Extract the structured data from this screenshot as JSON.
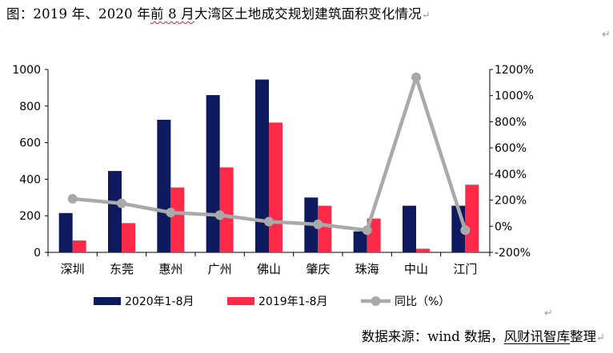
{
  "title": {
    "part1": "图：2019 年、2020 年",
    "part2": "前 8 月",
    "part3": "大湾区土地成交规划建筑面积变化情况",
    "return_mark": "↵"
  },
  "marks": {
    "side": "↵",
    "mid": "↵"
  },
  "source": {
    "prefix": "数据来源：wind 数据，",
    "underlined": "风财讯智库",
    "suffix": "整理",
    "return_mark": "↵"
  },
  "colors": {
    "s2020": "#0d1b5e",
    "s2019": "#ff2a48",
    "yoy": "#a9a9a9"
  },
  "chart_data": {
    "type": "bar",
    "categories": [
      "深圳",
      "东莞",
      "惠州",
      "广州",
      "佛山",
      "肇庆",
      "珠海",
      "中山",
      "江门"
    ],
    "series": [
      {
        "name": "2020年1-8月",
        "type": "bar",
        "axis": "left",
        "values": [
          215,
          445,
          725,
          860,
          945,
          300,
          115,
          255,
          255
        ]
      },
      {
        "name": "2019年1-8月",
        "type": "bar",
        "axis": "left",
        "values": [
          65,
          160,
          355,
          465,
          710,
          255,
          185,
          20,
          370
        ]
      },
      {
        "name": "同比（%）",
        "type": "line",
        "axis": "right",
        "values": [
          210,
          175,
          105,
          85,
          35,
          15,
          -30,
          1140,
          -30
        ]
      }
    ],
    "ylim_left": [
      0,
      1000
    ],
    "yticks_left": [
      "1000",
      "800",
      "600",
      "400",
      "200",
      "0"
    ],
    "ylim_right": [
      -200,
      1200
    ],
    "yticks_right": [
      "1200%",
      "1000%",
      "800%",
      "600%",
      "400%",
      "200%",
      "0%",
      "-200%"
    ],
    "legend_position": "bottom",
    "grid": false
  }
}
